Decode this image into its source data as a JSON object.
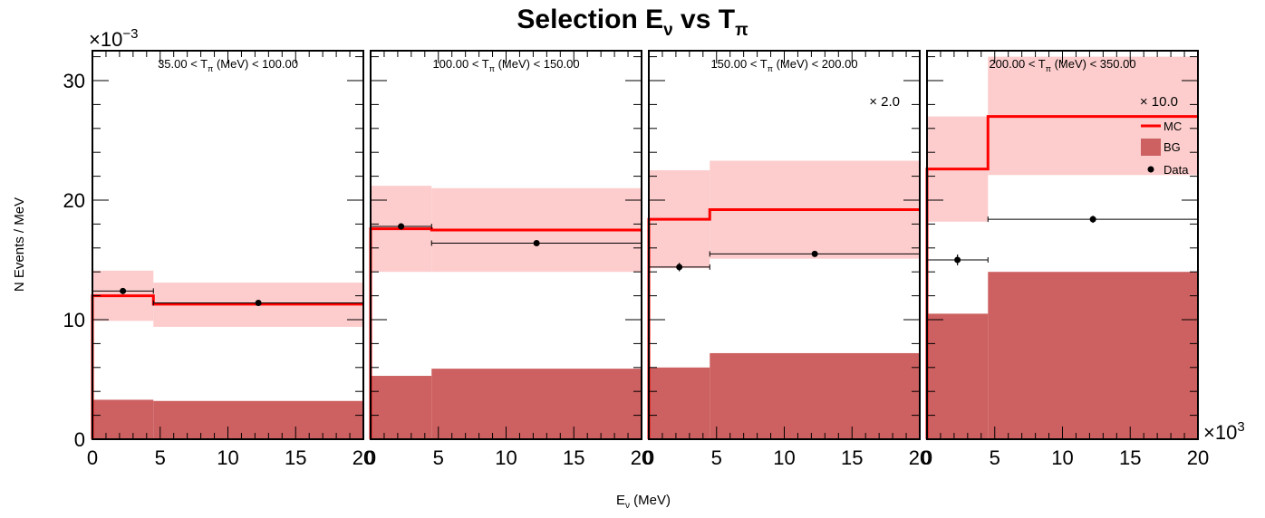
{
  "chart_data": {
    "type": "histogram",
    "title": {
      "main": "Selection E",
      "sub1": "ν",
      "mid": " vs T",
      "sub2": "π"
    },
    "ylabel": "N Events / MeV",
    "xlabel": {
      "main": "E",
      "sub": "ν",
      "rest": " (MeV)"
    },
    "y_multiplier": {
      "base": "×10",
      "exp": "−3"
    },
    "x_multiplier": {
      "base": "×10",
      "exp": "3"
    },
    "xlim": [
      0,
      20
    ],
    "ylim": [
      0,
      32.5
    ],
    "x_ticks": [
      "0",
      "5",
      "10",
      "15",
      "20"
    ],
    "y_ticks": [
      "0",
      "10",
      "20",
      "30"
    ],
    "bin_edges": [
      0,
      4.5,
      20
    ],
    "legend": {
      "placement": "top-right",
      "mc": "MC",
      "bg": "BG",
      "data": "Data"
    },
    "colors": {
      "mc_line": "#ff0000",
      "mc_band": "#fdcdcd",
      "bg_fill": "#cd6060",
      "data": "#000000"
    },
    "panels": [
      {
        "title": {
          "lo": "35.00 < T",
          "sub": "π",
          "hi": " (MeV) < 100.00"
        },
        "scale_label": "",
        "mc": [
          12.0,
          11.3
        ],
        "mc_band_low": [
          9.9,
          9.4
        ],
        "mc_band_high": [
          14.1,
          13.1
        ],
        "bg": [
          3.3,
          3.2
        ],
        "data_x": [
          2.25,
          12.25
        ],
        "data_y": [
          12.4,
          11.4
        ],
        "data_yerr": [
          0.15,
          0.12
        ]
      },
      {
        "title": {
          "lo": "100.00 < T",
          "sub": "π",
          "hi": " (MeV) < 150.00"
        },
        "scale_label": "",
        "mc": [
          17.6,
          17.5
        ],
        "mc_band_low": [
          14.0,
          14.0
        ],
        "mc_band_high": [
          21.2,
          21.0
        ],
        "bg": [
          5.3,
          5.9
        ],
        "data_x": [
          2.25,
          12.25
        ],
        "data_y": [
          17.8,
          16.4
        ],
        "data_yerr": [
          0.25,
          0.15
        ]
      },
      {
        "title": {
          "lo": "150.00 < T",
          "sub": "π",
          "hi": " (MeV) < 200.00"
        },
        "scale_label": "× 2.0",
        "mc": [
          18.4,
          19.2
        ],
        "mc_band_low": [
          14.3,
          15.1
        ],
        "mc_band_high": [
          22.5,
          23.3
        ],
        "bg": [
          6.0,
          7.2
        ],
        "data_x": [
          2.25,
          12.25
        ],
        "data_y": [
          14.4,
          15.5
        ],
        "data_yerr": [
          0.35,
          0.2
        ]
      },
      {
        "title": {
          "lo": "200.00 < T",
          "sub": "π",
          "hi": " (MeV) < 350.00"
        },
        "scale_label": "× 10.0",
        "mc": [
          22.6,
          27.0
        ],
        "mc_band_low": [
          18.2,
          22.1
        ],
        "mc_band_high": [
          27.0,
          32.0
        ],
        "bg": [
          10.5,
          14.0
        ],
        "data_x": [
          2.25,
          12.25
        ],
        "data_y": [
          15.0,
          18.4
        ],
        "data_yerr": [
          0.45,
          0.3
        ]
      }
    ]
  }
}
